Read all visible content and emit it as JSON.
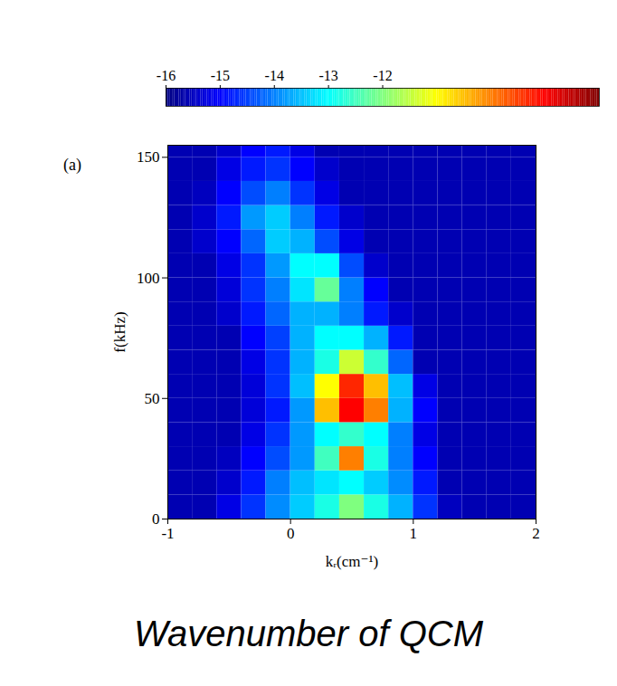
{
  "chart_data": {
    "type": "heatmap",
    "title": "Wavenumber of QCM",
    "panel": "(a)",
    "x_label": "kᵣ(cm⁻¹)",
    "y_label": "f(kHz)",
    "xlim": [
      -1,
      2
    ],
    "xticks": [
      -1,
      0,
      1,
      2
    ],
    "ylim": [
      0,
      155
    ],
    "yticks": [
      0,
      50,
      100,
      150
    ],
    "x_edges": [
      -1,
      -0.8,
      -0.6,
      -0.4,
      -0.2,
      0,
      0.2,
      0.4,
      0.6,
      0.8,
      1,
      1.2,
      1.4,
      1.6,
      1.8,
      2
    ],
    "y_edges": [
      0,
      10,
      20,
      30,
      40,
      50,
      60,
      70,
      80,
      90,
      100,
      110,
      120,
      130,
      140,
      150,
      160
    ],
    "z": [
      [
        -15.6,
        -15.6,
        -15.2,
        -14.6,
        -13.9,
        -13.4,
        -12.8,
        -12.0,
        -12.8,
        -13.6,
        -14.6,
        -15.5,
        -15.6,
        -15.6,
        -15.6
      ],
      [
        -15.6,
        -15.6,
        -15.4,
        -14.8,
        -14.0,
        -13.5,
        -13.2,
        -13.0,
        -13.4,
        -13.9,
        -14.8,
        -15.6,
        -15.6,
        -15.6,
        -15.6
      ],
      [
        -15.6,
        -15.6,
        -15.5,
        -15.0,
        -14.4,
        -13.8,
        -12.5,
        -10.0,
        -12.8,
        -14.0,
        -15.0,
        -15.6,
        -15.6,
        -15.6,
        -15.6
      ],
      [
        -15.6,
        -15.6,
        -15.6,
        -15.2,
        -14.6,
        -13.8,
        -13.0,
        -12.6,
        -13.0,
        -14.0,
        -15.2,
        -15.6,
        -15.6,
        -15.6,
        -15.6
      ],
      [
        -15.6,
        -15.6,
        -15.6,
        -15.3,
        -14.8,
        -13.8,
        -10.5,
        -9.0,
        -10.0,
        -13.6,
        -15.0,
        -15.6,
        -15.6,
        -15.6,
        -15.6
      ],
      [
        -15.6,
        -15.6,
        -15.6,
        -15.3,
        -14.6,
        -13.5,
        -11.0,
        -9.3,
        -10.5,
        -13.5,
        -15.2,
        -15.6,
        -15.6,
        -15.6,
        -15.6
      ],
      [
        -15.6,
        -15.6,
        -15.6,
        -15.2,
        -14.6,
        -13.6,
        -12.8,
        -11.4,
        -12.6,
        -14.2,
        -15.6,
        -15.6,
        -15.6,
        -15.6,
        -15.6
      ],
      [
        -15.6,
        -15.6,
        -15.6,
        -15.0,
        -14.5,
        -13.6,
        -13.0,
        -13.0,
        -13.6,
        -14.8,
        -15.6,
        -15.6,
        -15.6,
        -15.6,
        -15.6
      ],
      [
        -15.6,
        -15.6,
        -15.4,
        -14.8,
        -14.2,
        -13.6,
        -13.6,
        -14.0,
        -14.8,
        -15.4,
        -15.6,
        -15.6,
        -15.6,
        -15.6,
        -15.6
      ],
      [
        -15.6,
        -15.6,
        -15.3,
        -14.6,
        -14.0,
        -13.2,
        -12.2,
        -14.0,
        -15.0,
        -15.6,
        -15.6,
        -15.6,
        -15.6,
        -15.6,
        -15.6
      ],
      [
        -15.6,
        -15.6,
        -15.2,
        -14.6,
        -13.8,
        -13.0,
        -13.0,
        -14.4,
        -15.4,
        -15.6,
        -15.6,
        -15.6,
        -15.6,
        -15.6,
        -15.6
      ],
      [
        -15.6,
        -15.4,
        -15.0,
        -14.2,
        -13.4,
        -13.6,
        -14.4,
        -15.2,
        -15.6,
        -15.6,
        -15.6,
        -15.6,
        -15.6,
        -15.6,
        -15.6
      ],
      [
        -15.6,
        -15.4,
        -14.8,
        -13.8,
        -13.4,
        -14.0,
        -14.8,
        -15.4,
        -15.6,
        -15.6,
        -15.6,
        -15.6,
        -15.6,
        -15.6,
        -15.6
      ],
      [
        -15.6,
        -15.5,
        -15.0,
        -14.4,
        -14.0,
        -14.6,
        -15.2,
        -15.6,
        -15.6,
        -15.6,
        -15.6,
        -15.6,
        -15.6,
        -15.6,
        -15.6
      ],
      [
        -15.6,
        -15.6,
        -15.2,
        -14.8,
        -14.6,
        -15.0,
        -15.4,
        -15.6,
        -15.6,
        -15.6,
        -15.6,
        -15.6,
        -15.6,
        -15.6,
        -15.6
      ],
      [
        -15.6,
        -15.6,
        -15.4,
        -15.0,
        -14.8,
        -15.2,
        -15.6,
        -15.6,
        -15.6,
        -15.6,
        -15.6,
        -15.6,
        -15.6,
        -15.6,
        -15.6
      ]
    ],
    "colorbar": {
      "range": [
        -16,
        -8
      ],
      "ticks": [
        -16,
        -15,
        -14,
        -13,
        -12
      ]
    },
    "color": "jet"
  }
}
